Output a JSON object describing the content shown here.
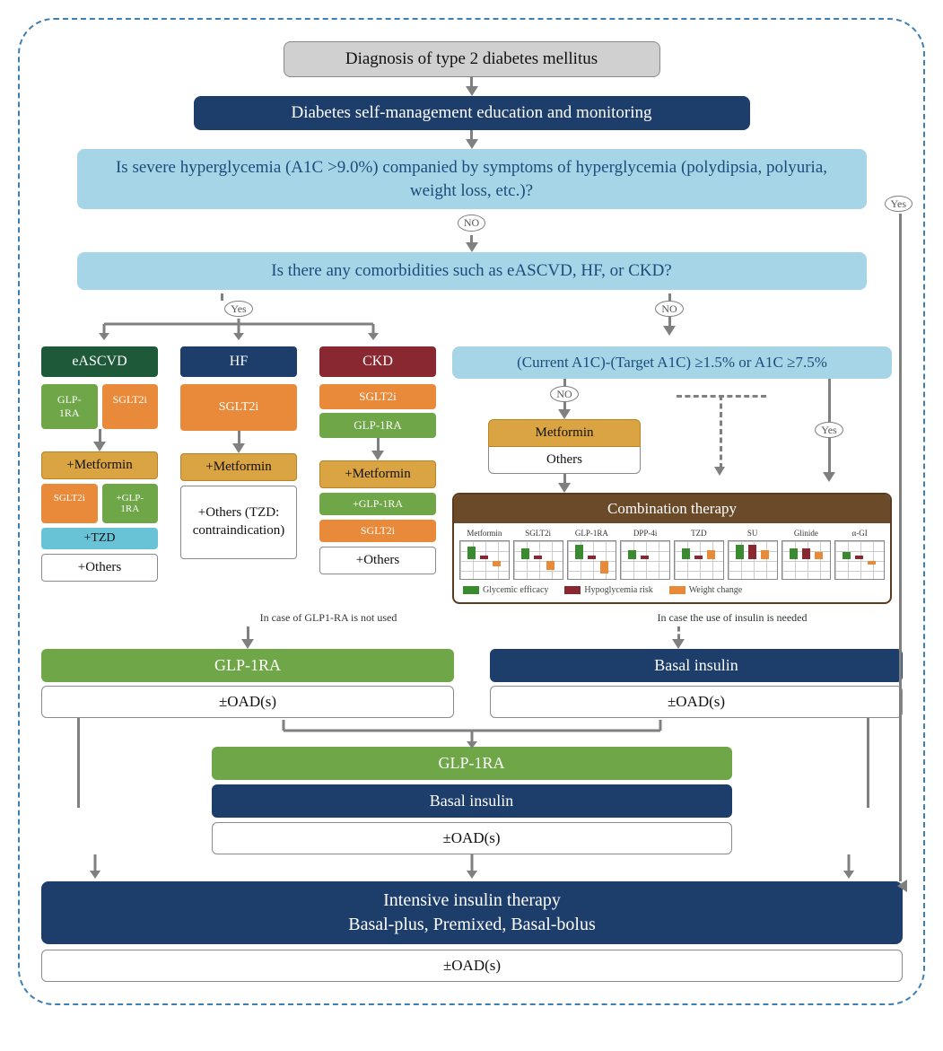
{
  "type": "flowchart",
  "colors": {
    "frame_border": "#3b7fb5",
    "navy": "#1d3d6b",
    "sky": "#a7d5e8",
    "sky_text": "#1a4d7a",
    "gray": "#d0d0d0",
    "dark_green": "#1e5a3a",
    "maroon": "#8a2832",
    "orange": "#e88a3a",
    "green": "#6ea648",
    "mustard": "#d9a441",
    "cyan": "#69c3d6",
    "brown": "#6b4a2a",
    "arrow": "#808080",
    "border": "#8a8a8a"
  },
  "nodes": {
    "n1": "Diagnosis of type 2 diabetes mellitus",
    "n2": "Diabetes self-management education and monitoring",
    "q1": "Is severe hyperglycemia (A1C >9.0%) companied by symptoms of hyperglycemia (polydipsia, polyuria, weight loss, etc.)?",
    "q2": "Is there any comorbidities such as eASCVD, HF, or CKD?",
    "a1c": "(Current A1C)-(Target A1C) ≥1.5% or A1C ≥7.5%"
  },
  "badges": {
    "yes": "Yes",
    "no": "NO"
  },
  "comorbid": {
    "eascvd": {
      "label": "eASCVD",
      "drugs": [
        "GLP-1RA",
        "SGLT2i"
      ],
      "plus": [
        "+Metformin"
      ],
      "row2": [
        "SGLT2i",
        "+GLP-1RA"
      ],
      "tzd": "+TZD",
      "others": "+Others"
    },
    "hf": {
      "label": "HF",
      "drugs": [
        "SGLT2i"
      ],
      "plus": "+Metformin",
      "others": "+Others (TZD: contraindication)"
    },
    "ckd": {
      "label": "CKD",
      "drugs": [
        "SGLT2i",
        "GLP-1RA"
      ],
      "plus": "+Metformin",
      "row2": [
        "+GLP-1RA",
        "SGLT2i"
      ],
      "others": "+Others"
    }
  },
  "mono": {
    "metformin": "Metformin",
    "others": "Others"
  },
  "combo": {
    "title": "Combination therapy",
    "classes": [
      "Metformin",
      "SGLT2i",
      "GLP-1RA",
      "DPP-4i",
      "TZD",
      "SU",
      "Glinide",
      "α-GI"
    ],
    "legend": {
      "eff": "Glycemic efficacy",
      "hypo": "Hypoglycemia risk",
      "wt": "Weight change"
    },
    "bars": [
      {
        "eff": 14,
        "hypo": 4,
        "wt": -6
      },
      {
        "eff": 12,
        "hypo": 4,
        "wt": -10
      },
      {
        "eff": 16,
        "hypo": 4,
        "wt": -14
      },
      {
        "eff": 10,
        "hypo": 4,
        "wt": 0
      },
      {
        "eff": 12,
        "hypo": 4,
        "wt": 10
      },
      {
        "eff": 16,
        "hypo": 16,
        "wt": 10
      },
      {
        "eff": 12,
        "hypo": 12,
        "wt": 8
      },
      {
        "eff": 8,
        "hypo": 4,
        "wt": -4
      }
    ]
  },
  "notes": {
    "left": "In case of GLP1-RA is not used",
    "right": "In case the use of insulin is needed"
  },
  "inject": {
    "glp": "GLP-1RA",
    "basal": "Basal insulin",
    "oad": "±OAD(s)",
    "intensive_l1": "Intensive insulin therapy",
    "intensive_l2": "Basal-plus, Premixed, Basal-bolus"
  }
}
